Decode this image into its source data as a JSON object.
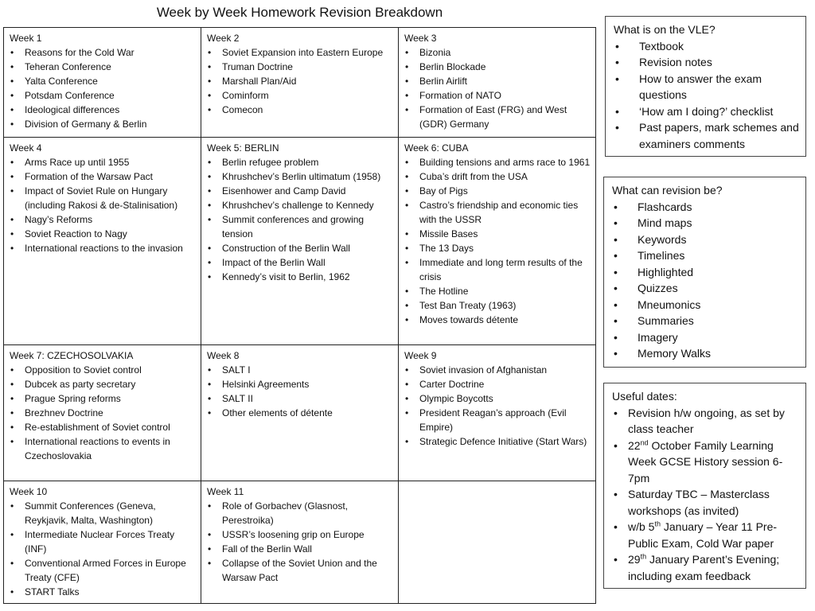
{
  "title": "Week by Week Homework Revision Breakdown",
  "weeks": [
    {
      "heading": "Week 1",
      "items": [
        "Reasons for the Cold War",
        "Teheran Conference",
        "Yalta Conference",
        "Potsdam Conference",
        "Ideological differences",
        "Division of Germany & Berlin"
      ]
    },
    {
      "heading": "Week 2",
      "items": [
        "Soviet Expansion into Eastern Europe",
        "Truman Doctrine",
        "Marshall Plan/Aid",
        "Cominform",
        "Comecon"
      ]
    },
    {
      "heading": "Week 3",
      "items": [
        "Bizonia",
        "Berlin Blockade",
        "Berlin Airlift",
        "Formation of NATO",
        "Formation of East (FRG) and West (GDR) Germany"
      ]
    },
    {
      "heading": "Week 4",
      "items": [
        "Arms Race up until 1955",
        "Formation of the Warsaw Pact",
        "Impact of Soviet Rule on Hungary (including Rakosi & de-Stalinisation)",
        "Nagy’s Reforms",
        "Soviet Reaction to Nagy",
        "International reactions to the invasion"
      ]
    },
    {
      "heading": "Week 5: BERLIN",
      "items": [
        "Berlin refugee problem",
        "Khrushchev’s Berlin ultimatum (1958)",
        "Eisenhower and Camp David",
        "Khrushchev’s challenge to Kennedy",
        "Summit conferences and growing tension",
        "Construction of the Berlin Wall",
        "Impact of the Berlin Wall",
        "Kennedy’s visit to Berlin, 1962"
      ]
    },
    {
      "heading": "Week 6: CUBA",
      "items": [
        "Building tensions and arms race to 1961",
        "Cuba’s drift from the USA",
        "Bay of Pigs",
        "Castro’s friendship and economic ties with the USSR",
        "Missile Bases",
        "The 13 Days",
        "Immediate and long term results of the crisis",
        "The Hotline",
        "Test Ban Treaty (1963)",
        "Moves towards détente"
      ]
    },
    {
      "heading": "Week 7: CZECHOSOLVAKIA",
      "items": [
        "Opposition to Soviet control",
        "Dubcek as party secretary",
        "Prague Spring reforms",
        "Brezhnev Doctrine",
        "Re-establishment of Soviet control",
        "International reactions to events in Czechoslovakia"
      ]
    },
    {
      "heading": "Week 8",
      "items": [
        "SALT I",
        "Helsinki Agreements",
        "SALT II",
        "Other elements of détente"
      ]
    },
    {
      "heading": "Week 9",
      "items": [
        "Soviet invasion of Afghanistan",
        "Carter Doctrine",
        "Olympic Boycotts",
        "President Reagan’s approach (Evil Empire)",
        "Strategic Defence Initiative (Start Wars)"
      ]
    },
    {
      "heading": "Week 10",
      "items": [
        "Summit Conferences (Geneva, Reykjavik, Malta, Washington)",
        "Intermediate Nuclear Forces Treaty (INF)",
        "Conventional Armed Forces in Europe Treaty (CFE)",
        "START Talks"
      ]
    },
    {
      "heading": "Week 11",
      "items": [
        "Role of Gorbachev (Glasnost, Perestroika)",
        "USSR’s loosening grip on Europe",
        "Fall of the Berlin Wall",
        "Collapse of the Soviet Union and the Warsaw Pact"
      ]
    },
    {
      "heading": "",
      "items": []
    }
  ],
  "vle": {
    "heading": "What is on the VLE?",
    "items": [
      "Textbook",
      "Revision notes",
      "How to answer the exam questions",
      "‘How am I doing?’ checklist",
      "Past papers, mark schemes and examiners comments"
    ]
  },
  "revision": {
    "heading": "What can revision be?",
    "items": [
      "Flashcards",
      "Mind maps",
      "Keywords",
      "Timelines",
      "Highlighted",
      "Quizzes",
      "Mneumonics",
      "Summaries",
      "Imagery",
      "Memory Walks"
    ]
  },
  "dates": {
    "heading": "Useful dates:",
    "items": [
      {
        "pre": "Revision h/w ongoing, as set by class teacher",
        "sup": "",
        "post": ""
      },
      {
        "pre": "22",
        "sup": "nd",
        "post": " October Family Learning Week GCSE History session 6-7pm"
      },
      {
        "pre": "Saturday TBC – Masterclass workshops (as invited)",
        "sup": "",
        "post": ""
      },
      {
        "pre": "w/b 5",
        "sup": "th",
        "post": " January – Year 11 Pre-Public Exam, Cold War paper"
      },
      {
        "pre": "29",
        "sup": "th",
        "post": " January Parent’s Evening; including exam feedback"
      }
    ]
  }
}
